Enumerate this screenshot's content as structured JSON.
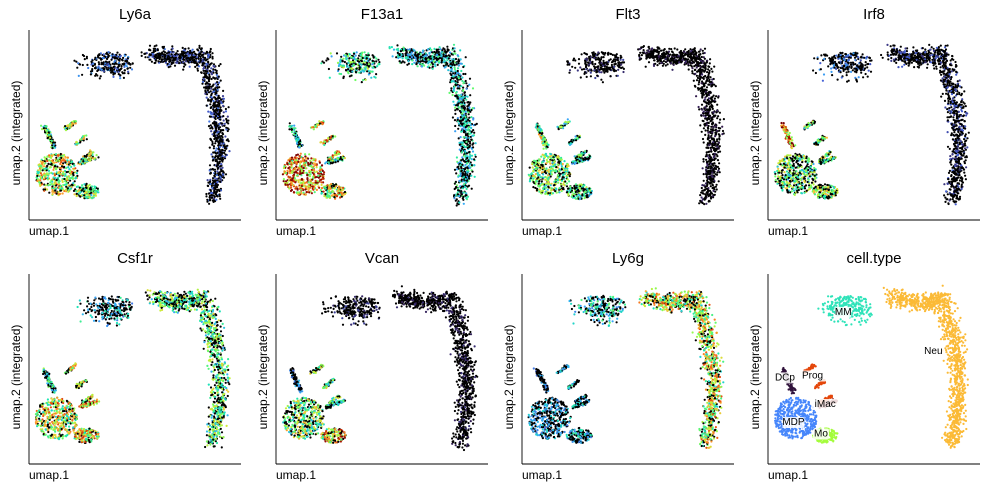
{
  "figure": {
    "xlabel": "umap.1",
    "ylabel": "umap.2 (integrated)"
  },
  "chart_data": [
    {
      "type": "scatter",
      "title": "Ly6a",
      "kind": "expression",
      "profile": {
        "mdp": 0.65,
        "mo": 0.55,
        "dc": 0.5,
        "mm": 0.15,
        "neu": 0.1,
        "prog": 0.6,
        "imac": 0.55
      }
    },
    {
      "type": "scatter",
      "title": "F13a1",
      "kind": "expression",
      "profile": {
        "mdp": 0.85,
        "mo": 0.7,
        "dc": 0.35,
        "mm": 0.45,
        "neu": 0.35,
        "prog": 0.7,
        "imac": 0.5
      }
    },
    {
      "type": "scatter",
      "title": "Flt3",
      "kind": "expression",
      "profile": {
        "mdp": 0.55,
        "mo": 0.45,
        "dc": 0.6,
        "mm": 0.05,
        "neu": 0.02,
        "prog": 0.45,
        "imac": 0.35
      }
    },
    {
      "type": "scatter",
      "title": "Irf8",
      "kind": "expression",
      "profile": {
        "mdp": 0.5,
        "mo": 0.55,
        "dc": 0.85,
        "mm": 0.15,
        "neu": 0.08,
        "prog": 0.55,
        "imac": 0.45
      }
    },
    {
      "type": "scatter",
      "title": "Csf1r",
      "kind": "expression",
      "profile": {
        "mdp": 0.65,
        "mo": 0.7,
        "dc": 0.4,
        "mm": 0.3,
        "neu": 0.5,
        "prog": 0.6,
        "imac": 0.8
      }
    },
    {
      "type": "scatter",
      "title": "Vcan",
      "kind": "expression",
      "profile": {
        "mdp": 0.55,
        "mo": 0.75,
        "dc": 0.2,
        "mm": 0.05,
        "neu": 0.03,
        "prog": 0.5,
        "imac": 0.4
      }
    },
    {
      "type": "scatter",
      "title": "Ly6g",
      "kind": "expression",
      "profile": {
        "mdp": 0.25,
        "mo": 0.3,
        "dc": 0.2,
        "mm": 0.35,
        "neu": 0.65,
        "prog": 0.3,
        "imac": 0.3
      }
    },
    {
      "type": "scatter",
      "title": "cell.type",
      "kind": "categorical",
      "categories": [
        {
          "name": "MM",
          "color": "#2fe3b9"
        },
        {
          "name": "Neu",
          "color": "#fbba36"
        },
        {
          "name": "DCp",
          "color": "#30123b"
        },
        {
          "name": "Prog",
          "color": "#e4460a"
        },
        {
          "name": "iMac",
          "color": "#7a0403"
        },
        {
          "name": "MDP",
          "color": "#4686fb"
        },
        {
          "name": "Mo",
          "color": "#a4fc3c"
        }
      ]
    }
  ]
}
